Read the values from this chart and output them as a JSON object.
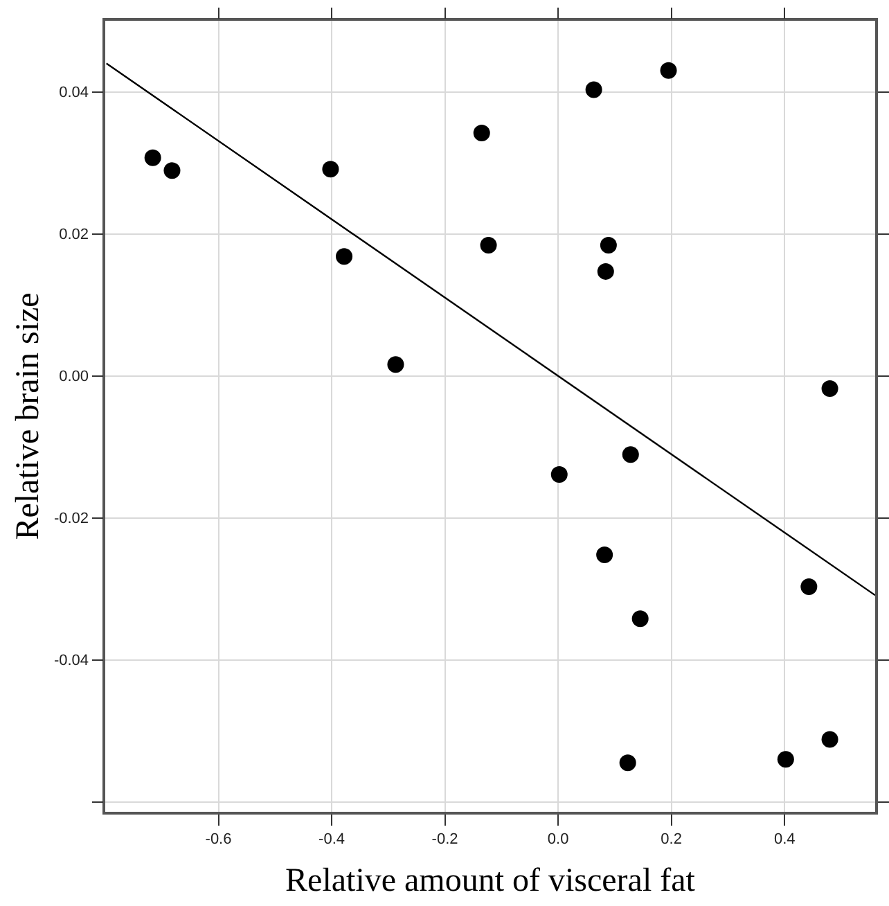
{
  "chart_data": {
    "type": "scatter",
    "xlabel": "Relative amount of visceral fat",
    "ylabel": "Relative brain size",
    "xlim": [
      -0.8,
      0.56
    ],
    "ylim": [
      -0.0614,
      0.05
    ],
    "xticks": [
      -0.6,
      -0.4,
      -0.2,
      "0.0",
      0.2,
      0.4
    ],
    "yticks": [
      0.04,
      0.02,
      {
        "value": 0,
        "label": "0.00"
      },
      -0.02,
      -0.04,
      {
        "value": -0.06,
        "label": null
      }
    ],
    "grid": true,
    "series": [
      {
        "marker": "circle",
        "color": "#000000",
        "x": [
          -0.716,
          -0.682,
          -0.402,
          -0.378,
          -0.287,
          -0.135,
          -0.123,
          0.063,
          0.195,
          0.089,
          0.084,
          0.48,
          0.002,
          0.128,
          0.082,
          0.145,
          0.443,
          0.123,
          0.402,
          0.48
        ],
        "values": [
          0.0307,
          0.0289,
          0.0291,
          0.0168,
          0.0016,
          0.0342,
          0.0184,
          0.0403,
          0.043,
          0.0184,
          0.0147,
          -0.0018,
          -0.0139,
          -0.0111,
          -0.0252,
          -0.0342,
          -0.0297,
          -0.0545,
          -0.054,
          -0.0512
        ]
      },
      {
        "type": "line",
        "color": "#000000",
        "marker": "none",
        "line_style": "solid",
        "x": [
          -0.798,
          0.56
        ],
        "values": [
          0.044,
          -0.0309
        ]
      }
    ]
  }
}
